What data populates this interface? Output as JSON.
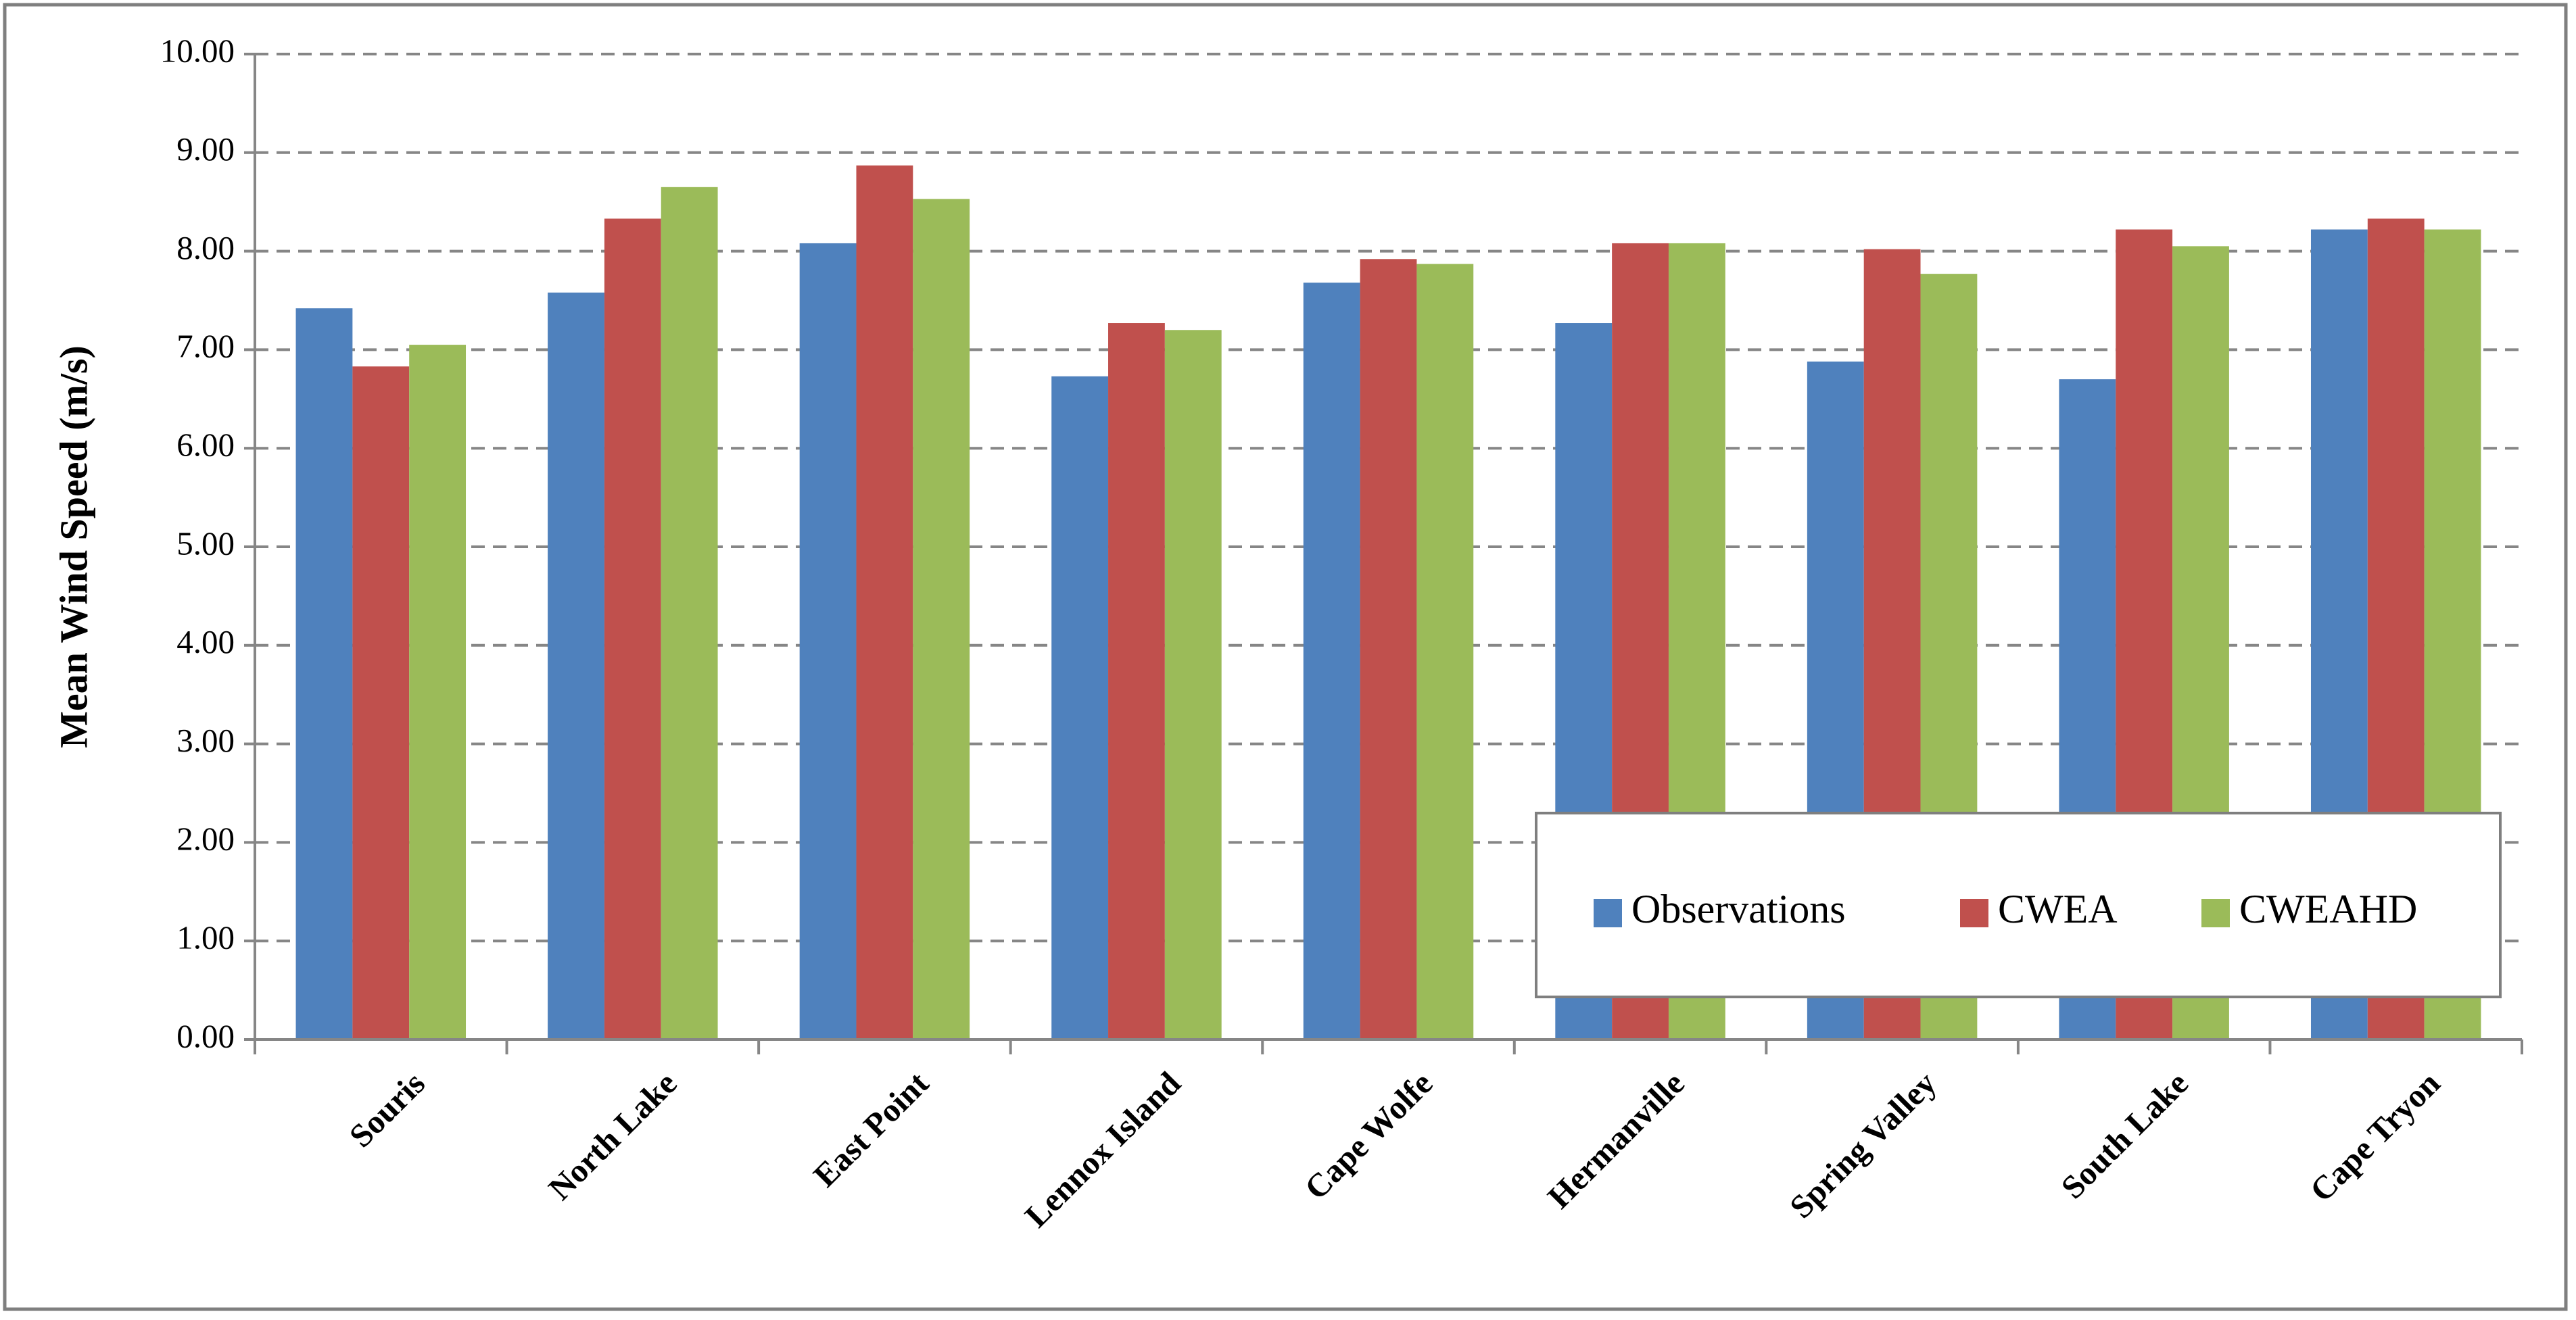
{
  "chart_data": {
    "type": "bar",
    "y_label": "Mean Wind Speed (m/s)",
    "categories": [
      "Souris",
      "North Lake",
      "East Point",
      "Lennox Island",
      "Cape Wolfe",
      "Hermanville",
      "Spring Valley",
      "South Lake",
      "Cape Tryon"
    ],
    "series": [
      {
        "name": "Observations",
        "color": "#4f81bd",
        "values": [
          7.42,
          7.58,
          8.08,
          6.73,
          7.68,
          7.27,
          6.88,
          6.7,
          8.22
        ]
      },
      {
        "name": "CWEA",
        "color": "#c0504d",
        "values": [
          6.83,
          8.33,
          8.87,
          7.27,
          7.92,
          8.08,
          8.02,
          8.22,
          8.33
        ]
      },
      {
        "name": "CWEAHD",
        "color": "#9bbb59",
        "values": [
          7.05,
          8.65,
          8.53,
          7.2,
          7.87,
          8.08,
          7.77,
          8.05,
          8.22
        ]
      }
    ],
    "ylim": [
      0,
      10
    ],
    "yticks": [
      {
        "value": 0,
        "label": "0.00"
      },
      {
        "value": 1,
        "label": "1.00"
      },
      {
        "value": 2,
        "label": "2.00"
      },
      {
        "value": 3,
        "label": "3.00"
      },
      {
        "value": 4,
        "label": "4.00"
      },
      {
        "value": 5,
        "label": "5.00"
      },
      {
        "value": 6,
        "label": "6.00"
      },
      {
        "value": 7,
        "label": "7.00"
      },
      {
        "value": 8,
        "label": "8.00"
      },
      {
        "value": 9,
        "label": "9.00"
      },
      {
        "value": 10,
        "label": "10.00"
      }
    ],
    "grid": true,
    "legend_position": "lower right"
  }
}
